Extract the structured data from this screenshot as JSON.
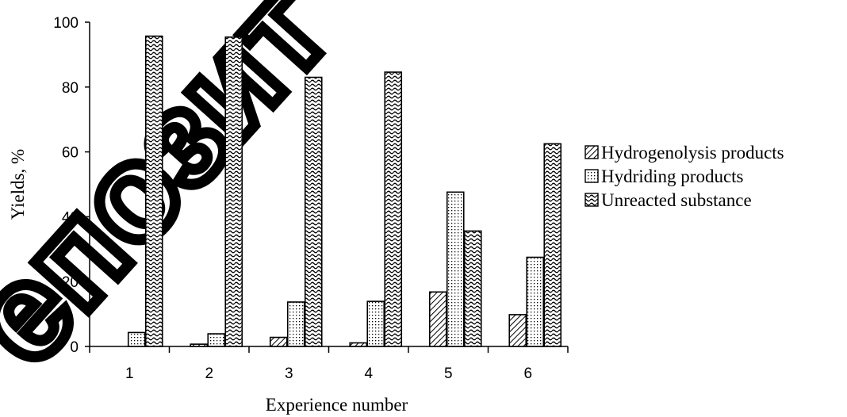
{
  "chart_data": {
    "type": "bar",
    "categories": [
      "1",
      "2",
      "3",
      "4",
      "5",
      "6"
    ],
    "series": [
      {
        "name": "Hydrogenolysis products",
        "values": [
          0,
          0.7,
          2.8,
          1.1,
          16.8,
          9.8
        ],
        "pattern": "diagonal"
      },
      {
        "name": "Hydriding products",
        "values": [
          4.3,
          3.9,
          13.7,
          13.9,
          47.6,
          27.5
        ],
        "pattern": "dots"
      },
      {
        "name": "Unreacted substance",
        "values": [
          95.7,
          95.4,
          83.0,
          84.6,
          35.6,
          62.5
        ],
        "pattern": "waves"
      }
    ],
    "xlabel": "Experience number",
    "ylabel": "Yields, %",
    "ylim": [
      0,
      100
    ],
    "yticks": [
      "0",
      "20",
      "40",
      "60",
      "80",
      "100"
    ],
    "grid": false,
    "legend_position": "right"
  },
  "watermark_text": "епозит"
}
